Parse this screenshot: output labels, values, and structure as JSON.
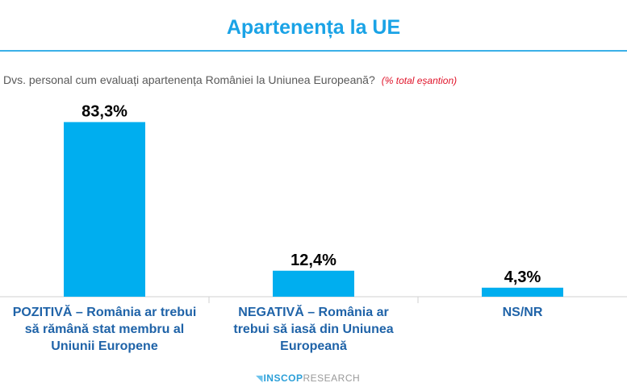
{
  "header": {
    "title": "Apartenența la UE"
  },
  "question": {
    "text": "Dvs. personal cum evaluați apartenența României la Uniunea Europeană?",
    "note": "(% total eșantion)"
  },
  "chart_data": {
    "type": "bar",
    "categories": [
      "POZITIVĂ – România ar trebui să rămână stat membru al Uniunii Europene",
      "NEGATIVĂ – România ar trebui să iasă din Uniunea Europeană",
      "NS/NR"
    ],
    "category_lines": [
      [
        "POZITIVĂ – România ar trebui",
        "să rămână stat membru al",
        "Uniunii Europene"
      ],
      [
        "NEGATIVĂ – România ar",
        "trebui să iasă din Uniunea",
        "Europeană"
      ],
      [
        "NS/NR"
      ]
    ],
    "values": [
      83.3,
      12.4,
      4.3
    ],
    "data_labels": [
      "83,3%",
      "12,4%",
      "4,3%"
    ],
    "unit": "%",
    "ylim": [
      0,
      100
    ],
    "grid": false,
    "bar_color": "#00aeef"
  },
  "footer": {
    "logo_mark": "◥",
    "logo_bold": "INSCOP",
    "logo_regular": "RESEARCH"
  }
}
